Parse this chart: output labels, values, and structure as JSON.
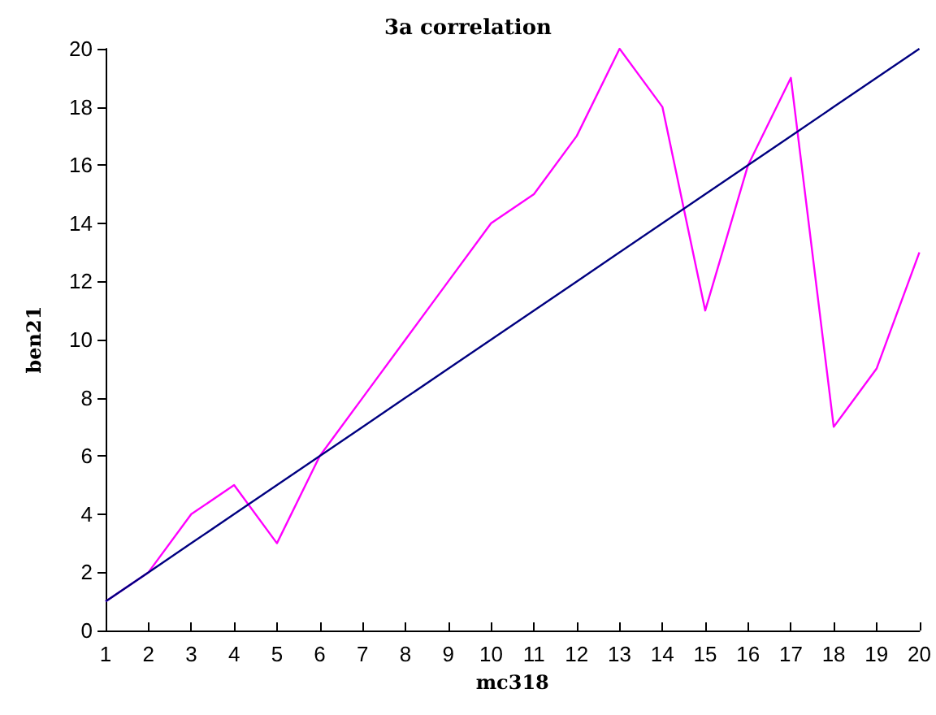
{
  "chart_data": {
    "type": "line",
    "title": "3a correlation",
    "xlabel": "mc318",
    "ylabel": "ben21",
    "x": [
      1,
      2,
      3,
      4,
      5,
      6,
      7,
      8,
      9,
      10,
      11,
      12,
      13,
      14,
      15,
      16,
      17,
      18,
      19,
      20
    ],
    "series": [
      {
        "color": "#ff00ff",
        "values": [
          1,
          2,
          4,
          5,
          3,
          6,
          8,
          10,
          12,
          14,
          15,
          17,
          20,
          18,
          11,
          16,
          19,
          7,
          9,
          13
        ]
      },
      {
        "color": "#000080",
        "values": [
          1,
          2,
          3,
          4,
          5,
          6,
          7,
          8,
          9,
          10,
          11,
          12,
          13,
          14,
          15,
          16,
          17,
          18,
          19,
          20
        ]
      }
    ],
    "xlim": [
      1,
      20
    ],
    "xticks": [
      1,
      2,
      3,
      4,
      5,
      6,
      7,
      8,
      9,
      10,
      11,
      12,
      13,
      14,
      15,
      16,
      17,
      18,
      19,
      20
    ],
    "ylim": [
      0,
      20
    ],
    "yticks": [
      0,
      2,
      4,
      6,
      8,
      10,
      12,
      14,
      16,
      18,
      20
    ],
    "grid": false,
    "marker": "none",
    "line_style": "solid"
  }
}
